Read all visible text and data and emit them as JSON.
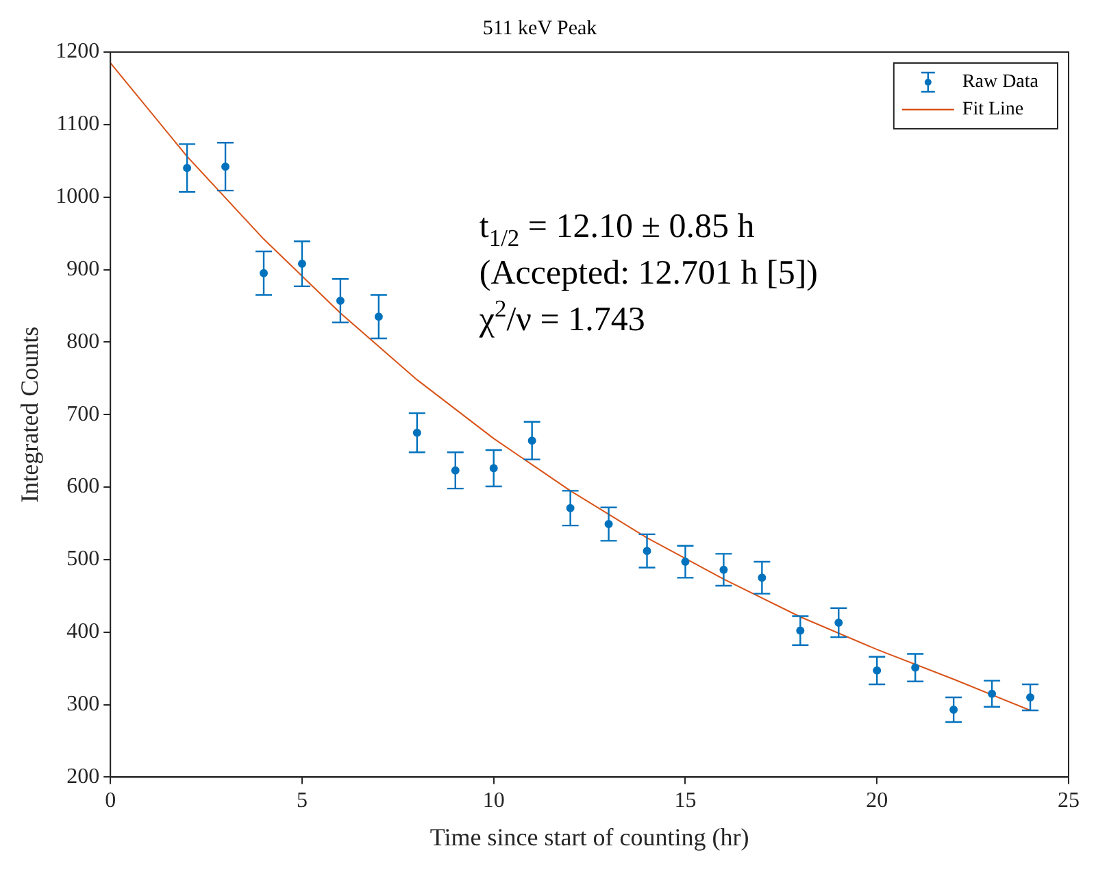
{
  "chart_data": {
    "type": "scatter",
    "title": "511 keV Peak",
    "xlabel": "Time since start of counting (hr)",
    "ylabel": "Integrated Counts",
    "xlim": [
      0,
      25
    ],
    "xticks": [
      0,
      5,
      10,
      15,
      20,
      25
    ],
    "ylim": [
      200,
      1200
    ],
    "yticks": [
      200,
      300,
      400,
      500,
      600,
      700,
      800,
      900,
      1000,
      1100,
      1200
    ],
    "grid": false,
    "legend": "top right",
    "annotations": [
      "t$_{1/2}$ = 12.10 ± 0.85 h",
      "(Accepted: 12.701 h [5])",
      "χ$^{2}$/ν = 1.743"
    ],
    "series": [
      {
        "name": "Raw Data",
        "type": "scatter",
        "color": "#0072bd",
        "marker": "circle",
        "x": [
          2,
          3,
          4,
          5,
          6,
          7,
          8,
          9,
          10,
          11,
          12,
          13,
          14,
          15,
          16,
          17,
          18,
          19,
          20,
          21,
          22,
          23,
          24
        ],
        "values": [
          1040,
          1042,
          895,
          908,
          857,
          835,
          675,
          623,
          626,
          664,
          571,
          549,
          512,
          497,
          486,
          475,
          402,
          413,
          347,
          351,
          293,
          315,
          310
        ],
        "errors": [
          33,
          33,
          30,
          31,
          30,
          30,
          27,
          25,
          25,
          26,
          24,
          23,
          23,
          22,
          22,
          22,
          20,
          20,
          19,
          19,
          17,
          18,
          18
        ]
      },
      {
        "name": "Fit Line",
        "type": "line",
        "color": "#d95319",
        "marker": "none",
        "line_style": "solid",
        "x": [
          0,
          2,
          4,
          6,
          8,
          10,
          12,
          14,
          16,
          18,
          20,
          22,
          24
        ],
        "values": [
          1185,
          1056,
          942,
          840,
          748,
          667,
          595,
          530,
          473,
          421,
          376,
          335,
          292
        ]
      }
    ]
  }
}
